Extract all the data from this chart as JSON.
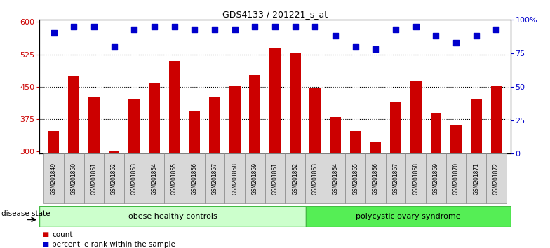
{
  "title": "GDS4133 / 201221_s_at",
  "samples": [
    "GSM201849",
    "GSM201850",
    "GSM201851",
    "GSM201852",
    "GSM201853",
    "GSM201854",
    "GSM201855",
    "GSM201856",
    "GSM201857",
    "GSM201858",
    "GSM201859",
    "GSM201861",
    "GSM201862",
    "GSM201863",
    "GSM201864",
    "GSM201865",
    "GSM201866",
    "GSM201867",
    "GSM201868",
    "GSM201869",
    "GSM201870",
    "GSM201871",
    "GSM201872"
  ],
  "counts": [
    348,
    476,
    425,
    302,
    420,
    460,
    510,
    395,
    425,
    452,
    477,
    540,
    527,
    447,
    380,
    348,
    322,
    415,
    465,
    390,
    360,
    420,
    452
  ],
  "percentile_ranks": [
    90,
    95,
    95,
    80,
    93,
    95,
    95,
    93,
    93,
    93,
    95,
    95,
    95,
    95,
    88,
    80,
    78,
    93,
    95,
    88,
    83,
    88,
    93
  ],
  "obese_count": 13,
  "polycystic_count": 10,
  "ylim_left": [
    295,
    605
  ],
  "yticks_left": [
    300,
    375,
    450,
    525,
    600
  ],
  "yticks_right_vals": [
    0,
    25,
    50,
    75,
    100
  ],
  "yticks_right_labels": [
    "0",
    "25",
    "50",
    "75",
    "100%"
  ],
  "bar_color": "#cc0000",
  "dot_color": "#0000cc",
  "obese_label": "obese healthy controls",
  "polycystic_label": "polycystic ovary syndrome",
  "legend_count_label": "count",
  "legend_percentile_label": "percentile rank within the sample",
  "disease_state_label": "disease state",
  "obese_bg": "#ccffcc",
  "polycystic_bg": "#55ee55",
  "dot_size": 30,
  "grid_lines": [
    375,
    450,
    525
  ]
}
